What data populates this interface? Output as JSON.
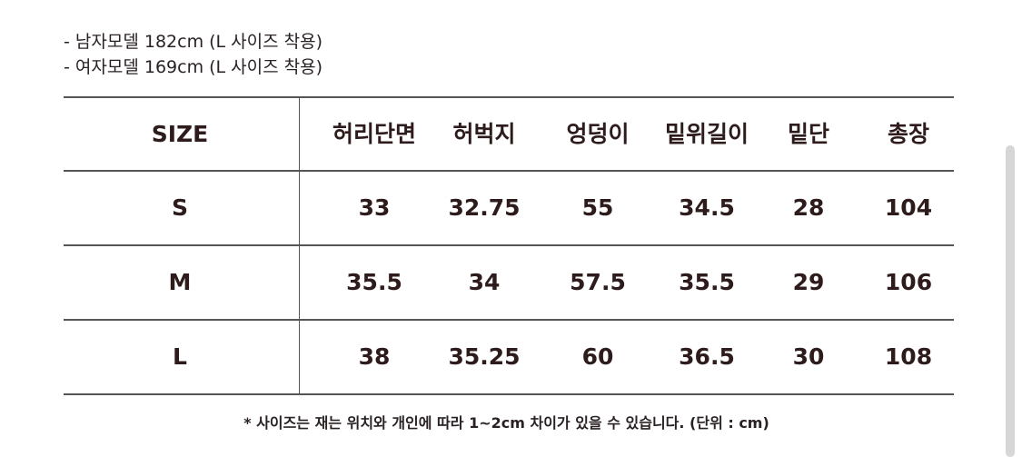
{
  "notes": [
    "- 남자모델 182cm (L 사이즈 착용)",
    "- 여자모델 169cm (L 사이즈 착용)"
  ],
  "table": {
    "headers": [
      "SIZE",
      "허리단면",
      "허벅지",
      "엉덩이",
      "밑위길이",
      "밑단",
      "총장"
    ],
    "rows": [
      [
        "S",
        "33",
        "32.75",
        "55",
        "34.5",
        "28",
        "104"
      ],
      [
        "M",
        "35.5",
        "34",
        "57.5",
        "35.5",
        "29",
        "106"
      ],
      [
        "L",
        "38",
        "35.25",
        "60",
        "36.5",
        "30",
        "108"
      ]
    ]
  },
  "footnote": "* 사이즈는 재는 위치와 개인에 따라 1~2cm 차이가 있을 수 있습니다. (단위 : cm)"
}
